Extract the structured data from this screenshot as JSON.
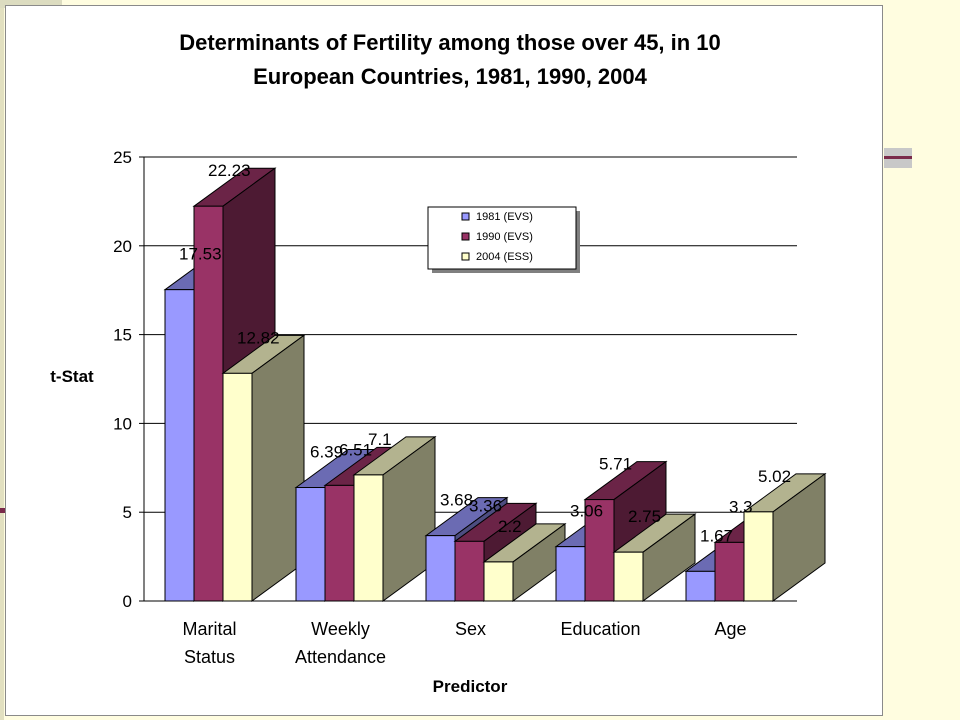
{
  "chart_data": {
    "type": "bar",
    "title_lines": [
      "Determinants of Fertility among those over 45, in 10",
      "European Countries, 1981, 1990, 2004"
    ],
    "xlabel": "Predictor",
    "ylabel": "t-Stat",
    "ylim": [
      0,
      25
    ],
    "yticks": [
      0,
      5,
      10,
      15,
      20,
      25
    ],
    "grid": true,
    "legend_position": "top-center",
    "categories": [
      [
        "Marital",
        "Status"
      ],
      [
        "Weekly",
        "Attendance"
      ],
      [
        "Sex"
      ],
      [
        "Education"
      ],
      [
        "Age"
      ]
    ],
    "series": [
      {
        "name": "1981 (EVS)",
        "values": [
          17.53,
          6.39,
          3.68,
          3.06,
          1.67
        ],
        "labels": [
          "17.53",
          "6.39",
          "3.68",
          "3.06",
          "1.67"
        ],
        "color": "#9999ff"
      },
      {
        "name": "1990 (EVS)",
        "values": [
          22.23,
          6.51,
          3.36,
          5.71,
          3.3
        ],
        "labels": [
          "22.23",
          "6.51",
          "3.36",
          "5.71",
          "3.3"
        ],
        "color": "#993366"
      },
      {
        "name": "2004 (ESS)",
        "values": [
          12.82,
          7.1,
          2.2,
          2.75,
          5.02
        ],
        "labels": [
          "12.82",
          "7.1",
          "2.2",
          "2.75",
          "5.02"
        ],
        "color": "#ffffcc"
      }
    ]
  }
}
